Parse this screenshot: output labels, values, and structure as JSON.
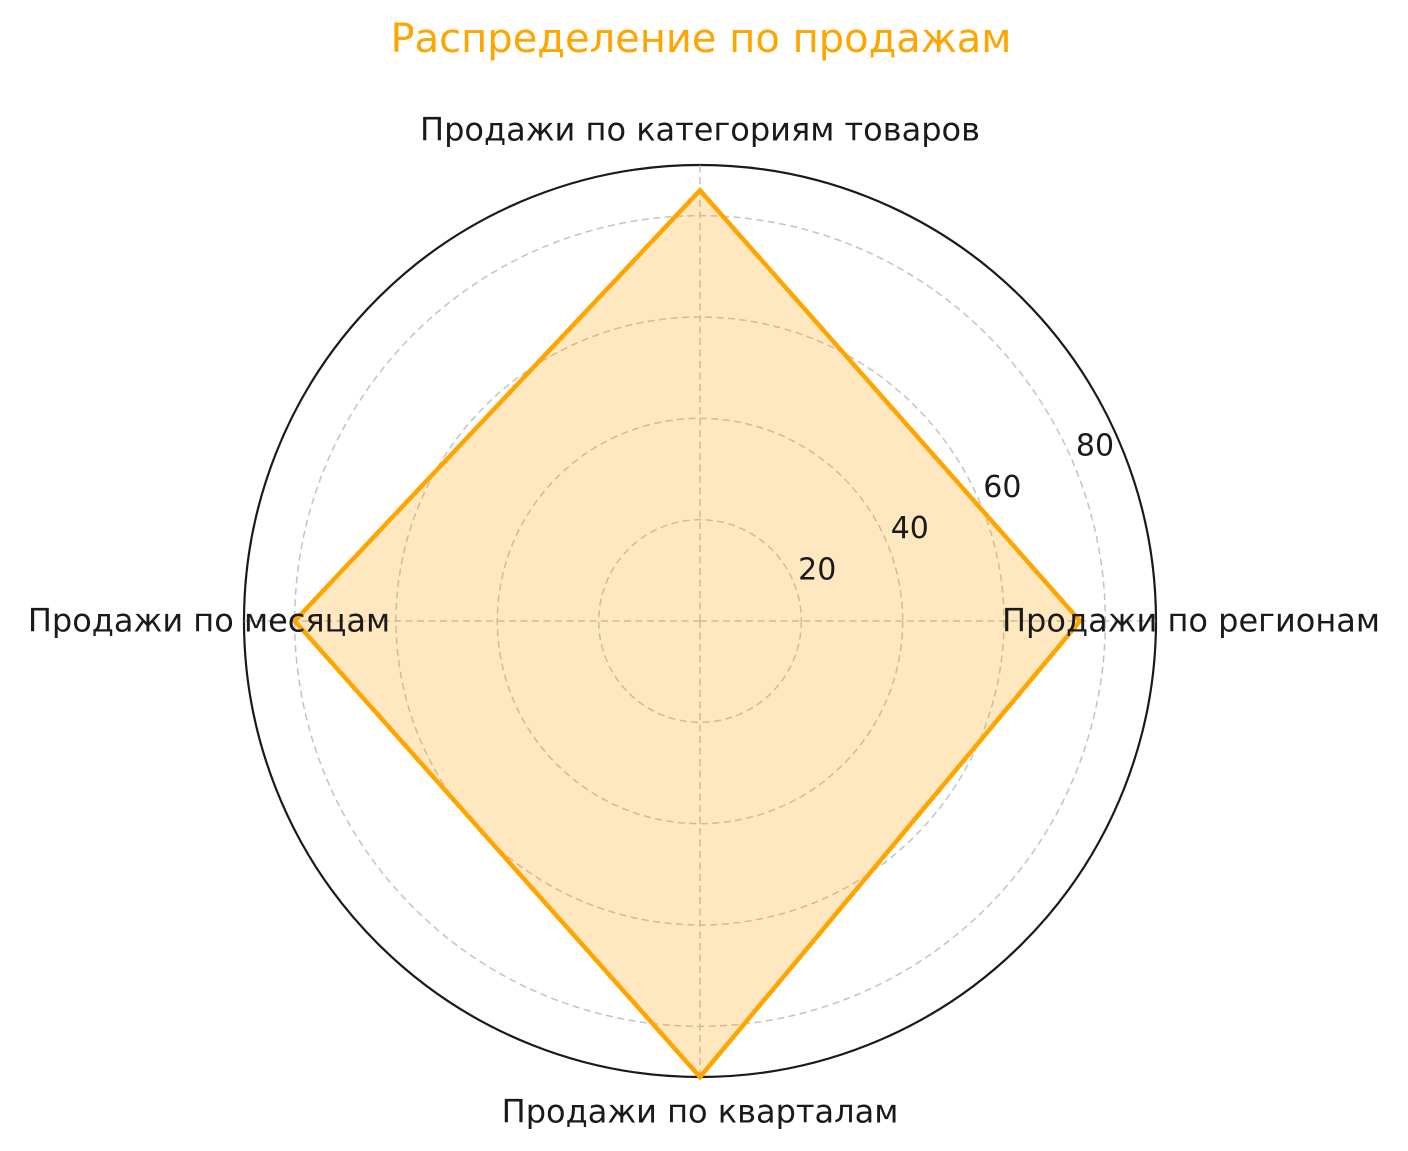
{
  "chart_data": {
    "type": "radar",
    "title": "Распределение по продажам",
    "categories": [
      "Продажи по категориям товаров",
      "Продажи по регионам",
      "Продажи по кварталам",
      "Продажи по месяцам"
    ],
    "angles_deg": [
      90,
      0,
      270,
      180
    ],
    "values": [
      85,
      75,
      90,
      80
    ],
    "r_axis": {
      "max": 90,
      "ticks": [
        20,
        40,
        60,
        80
      ],
      "tick_labels": [
        "20",
        "40",
        "60",
        "80"
      ],
      "tick_label_angle_deg": 24
    },
    "grid": true,
    "legend": null,
    "colors": {
      "title": "#FFA500",
      "line": "#FFA500",
      "fill": "rgba(255, 165, 0, 0.25)",
      "grid": "#c3c3c3",
      "outline": "#1a1a1a",
      "text": "#1a1a1a"
    }
  }
}
